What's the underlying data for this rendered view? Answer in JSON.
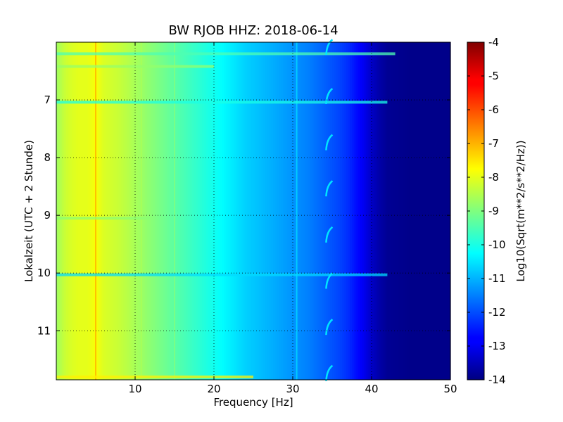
{
  "chart_data": {
    "type": "heatmap",
    "title": "BW RJOB HHZ: 2018-06-14",
    "xlabel": "Frequency [Hz]",
    "ylabel": "Lokalzeit (UTC + 2 Stunde)",
    "xlim": [
      0,
      50
    ],
    "ylim": [
      6.0,
      11.85
    ],
    "y_inverted": true,
    "x_ticks": [
      "10",
      "20",
      "30",
      "40",
      "50"
    ],
    "x_tick_values": [
      10,
      20,
      30,
      40,
      50
    ],
    "y_ticks": [
      "7",
      "8",
      "9",
      "10",
      "11"
    ],
    "y_tick_values": [
      7,
      8,
      9,
      10,
      11
    ],
    "grid": true,
    "colormap": "jet",
    "colorbar": {
      "label": "Log10(Sqrt(m**2/s**2/Hz))",
      "range": [
        -14,
        -4
      ],
      "ticks": [
        "-4",
        "-5",
        "-6",
        "-7",
        "-8",
        "-9",
        "-10",
        "-11",
        "-12",
        "-13",
        "-14"
      ],
      "tick_values": [
        -4,
        -5,
        -6,
        -7,
        -8,
        -9,
        -10,
        -11,
        -12,
        -13,
        -14
      ]
    },
    "spectrum_profile": {
      "frequency_hz": [
        0,
        1,
        2,
        3,
        4,
        5,
        6,
        8,
        10,
        12,
        14,
        16,
        18,
        20,
        22,
        24,
        26,
        28,
        30,
        32,
        34,
        36,
        37,
        38,
        39,
        40,
        41,
        42,
        45,
        50
      ],
      "log10_amplitude": [
        -8.7,
        -8.3,
        -8.1,
        -8.0,
        -8.0,
        -7.8,
        -8.1,
        -8.3,
        -8.6,
        -8.9,
        -9.2,
        -9.5,
        -9.8,
        -10.1,
        -10.4,
        -10.7,
        -10.9,
        -11.1,
        -11.3,
        -11.5,
        -11.8,
        -12.1,
        -12.3,
        -12.6,
        -12.9,
        -13.3,
        -13.6,
        -13.8,
        -13.9,
        -13.9
      ]
    },
    "line_features": [
      {
        "frequency_hz": 5.0,
        "log10_amplitude": -7.0
      },
      {
        "frequency_hz": 10.8,
        "log10_amplitude": -8.6
      },
      {
        "frequency_hz": 15.0,
        "log10_amplitude": -9.0
      },
      {
        "frequency_hz": 30.5,
        "log10_amplitude": -10.6
      }
    ],
    "time_events": [
      {
        "time": 6.2,
        "max_frequency_hz": 43,
        "log10_amplitude": -9.5
      },
      {
        "time": 6.42,
        "max_frequency_hz": 20,
        "log10_amplitude": -8.8
      },
      {
        "time": 7.04,
        "max_frequency_hz": 42,
        "log10_amplitude": -10.0
      },
      {
        "time": 9.05,
        "max_frequency_hz": 12,
        "log10_amplitude": -8.9
      },
      {
        "time": 10.03,
        "max_frequency_hz": 42,
        "log10_amplitude": -10.6
      },
      {
        "time": 11.8,
        "max_frequency_hz": 25,
        "log10_amplitude": -7.6
      }
    ],
    "periodic_arcs": {
      "frequency_hz": 34.5,
      "times": [
        6.1,
        6.95,
        7.75,
        8.55,
        9.35,
        10.15,
        10.95,
        11.75
      ],
      "log10_amplitude": -10.5
    }
  }
}
